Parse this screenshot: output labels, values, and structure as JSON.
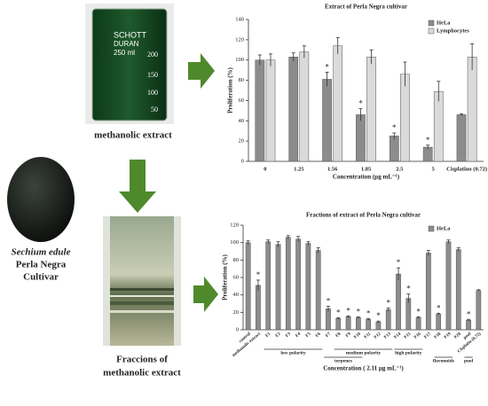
{
  "labels": {
    "beaker_caption": "methanolic extract",
    "species": "Sechium edule",
    "cultivar_1": "Perla Negra",
    "cultivar_2": "Cultivar",
    "fractions_1": "Fraccions of",
    "fractions_2": "methanolic extract"
  },
  "photo_beaker": {
    "brand": "SCHOTT",
    "glass": "DURAN",
    "volume": "250 ml",
    "graduations": [
      "200",
      "150",
      "100",
      "50"
    ]
  },
  "chart_data": [
    {
      "type": "bar",
      "title": "Extract of Perla Negra cultivar",
      "xlabel": "Concentration (µg mL⁻¹)",
      "ylabel": "Proliferation (%)",
      "categories": [
        "0",
        "1.25",
        "1.56",
        "1.85",
        "2.5",
        "5",
        "Cisplatino (0.72)"
      ],
      "series": [
        {
          "name": "HeLa",
          "color": "#8c8c8c",
          "values": [
            100,
            103,
            81,
            46,
            25,
            14,
            46
          ],
          "errors": [
            5,
            4,
            7,
            6,
            3,
            2,
            1
          ],
          "significant": [
            false,
            false,
            true,
            true,
            true,
            true,
            false
          ]
        },
        {
          "name": "Lymphocytes",
          "color": "#dadada",
          "values": [
            100,
            108,
            114,
            103,
            86,
            69,
            103
          ],
          "errors": [
            6,
            6,
            8,
            7,
            12,
            10,
            13
          ]
        }
      ],
      "marker": "*",
      "ylim": [
        0,
        140
      ],
      "yticks": [
        0,
        20,
        40,
        60,
        80,
        100,
        120,
        140
      ],
      "legend": "top-right"
    },
    {
      "type": "bar",
      "title": "Fractions of extract of Perla Negra cultivar",
      "xlabel": "Concentration ( 2.11 µg mL⁻¹)",
      "ylabel": "Proliferation (%)",
      "categories": [
        "control",
        "methanolic extract",
        "F1",
        "F2",
        "F3",
        "F4",
        "F5",
        "F6",
        "F7",
        "F8",
        "F9",
        "F10",
        "F11",
        "F12",
        "F13",
        "F14",
        "F15",
        "F16",
        "F17",
        "F18",
        "F19",
        "F20",
        "pool",
        "Cisplatin (0.72)"
      ],
      "series": [
        {
          "name": "HeLa",
          "color": "#8c8c8c",
          "values": [
            100,
            51,
            101,
            98,
            106,
            104,
            99,
            91,
            24,
            13,
            15,
            14,
            12,
            9,
            23,
            64,
            36,
            14,
            88,
            18,
            101,
            92,
            11,
            45
          ],
          "errors": [
            2,
            6,
            2,
            3,
            2,
            3,
            2,
            3,
            3,
            1,
            1,
            1,
            1,
            1,
            2,
            7,
            5,
            1,
            3,
            1,
            2,
            2,
            1,
            1
          ],
          "significant": [
            false,
            true,
            false,
            false,
            false,
            false,
            false,
            false,
            true,
            true,
            true,
            true,
            true,
            true,
            true,
            true,
            true,
            true,
            false,
            true,
            false,
            false,
            true,
            false
          ]
        }
      ],
      "groups": [
        "low polarity",
        "terpenes",
        "medium polarity",
        "high polarity",
        "flavonoids",
        "pool"
      ],
      "marker": "*",
      "ylim": [
        0,
        120
      ],
      "yticks": [
        0,
        20,
        40,
        60,
        80,
        100,
        120
      ],
      "legend": "top-right"
    }
  ]
}
